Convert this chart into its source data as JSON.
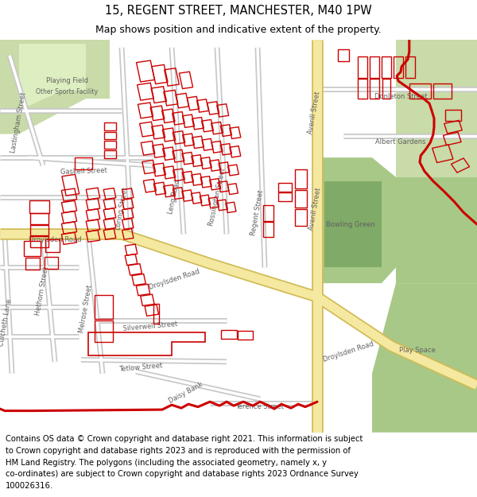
{
  "title_line1": "15, REGENT STREET, MANCHESTER, M40 1PW",
  "title_line2": "Map shows position and indicative extent of the property.",
  "footer_text": "Contains OS data © Crown copyright and database right 2021. This information is subject to Crown copyright and database rights 2023 and is reproduced with the permission of HM Land Registry. The polygons (including the associated geometry, namely x, y co-ordinates) are subject to Crown copyright and database rights 2023 Ordnance Survey 100026316.",
  "title_fontsize": 10.5,
  "subtitle_fontsize": 9.0,
  "footer_fontsize": 7.2,
  "map_bg": "#f0ece4",
  "road_color": "#ffffff",
  "road_edge": "#c8c8c8",
  "major_road_color": "#f5e8a0",
  "major_road_edge": "#d0bb55",
  "green_light": "#c8dba8",
  "green_mid": "#a8c888",
  "green_dark": "#80aa68",
  "red_color": "#cc0000"
}
